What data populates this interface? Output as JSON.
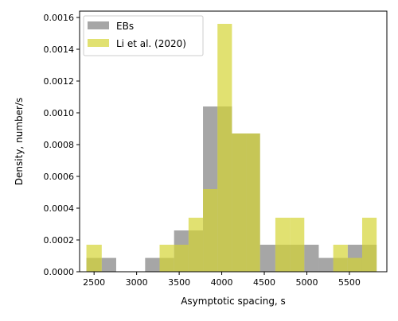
{
  "chart_data": {
    "type": "bar",
    "subtype": "overlapping-histogram",
    "title": "",
    "xlabel": "Asymptotic spacing, s",
    "ylabel": "Density, number/s",
    "xlim": [
      2330,
      5940
    ],
    "ylim": [
      0,
      0.00164
    ],
    "x_ticks": [
      2500,
      3000,
      3500,
      4000,
      4500,
      5000,
      5500
    ],
    "x_tick_labels": [
      "2500",
      "3000",
      "3500",
      "4000",
      "4500",
      "5000",
      "5500"
    ],
    "y_ticks": [
      0,
      0.0002,
      0.0004,
      0.0006,
      0.0008,
      0.001,
      0.0012,
      0.0014,
      0.0016
    ],
    "y_tick_labels": [
      "0.0000",
      "0.0002",
      "0.0004",
      "0.0006",
      "0.0008",
      "0.0010",
      "0.0012",
      "0.0014",
      "0.0016"
    ],
    "grid": false,
    "legend_position": "top-left",
    "overlap_color": "#a2a23c",
    "series": [
      {
        "name": "EBs",
        "color": "#808080",
        "bins": [
          {
            "x0": 2410,
            "x1": 2590,
            "value": 8.7e-05
          },
          {
            "x0": 2590,
            "x1": 2760,
            "value": 8.7e-05
          },
          {
            "x0": 3100,
            "x1": 3270,
            "value": 8.7e-05
          },
          {
            "x0": 3270,
            "x1": 3440,
            "value": 8.7e-05
          },
          {
            "x0": 3440,
            "x1": 3610,
            "value": 0.00026
          },
          {
            "x0": 3610,
            "x1": 3780,
            "value": 0.00026
          },
          {
            "x0": 3780,
            "x1": 3950,
            "value": 0.00104
          },
          {
            "x0": 3950,
            "x1": 4120,
            "value": 0.00104
          },
          {
            "x0": 4120,
            "x1": 4290,
            "value": 0.00087
          },
          {
            "x0": 4290,
            "x1": 4450,
            "value": 0.00087
          },
          {
            "x0": 4450,
            "x1": 4630,
            "value": 0.00017
          },
          {
            "x0": 4630,
            "x1": 4800,
            "value": 0.00017
          },
          {
            "x0": 4800,
            "x1": 4970,
            "value": 0.00017
          },
          {
            "x0": 4970,
            "x1": 5140,
            "value": 0.00017
          },
          {
            "x0": 5140,
            "x1": 5310,
            "value": 8.7e-05
          },
          {
            "x0": 5310,
            "x1": 5480,
            "value": 8.7e-05
          },
          {
            "x0": 5480,
            "x1": 5650,
            "value": 0.00017
          },
          {
            "x0": 5650,
            "x1": 5820,
            "value": 0.00017
          }
        ]
      },
      {
        "name": "Li et al. (2020)",
        "color": "#d4d434",
        "bins": [
          {
            "x0": 2410,
            "x1": 2590,
            "value": 0.00017
          },
          {
            "x0": 3270,
            "x1": 3440,
            "value": 0.00017
          },
          {
            "x0": 3440,
            "x1": 3610,
            "value": 0.00017
          },
          {
            "x0": 3610,
            "x1": 3780,
            "value": 0.00034
          },
          {
            "x0": 3780,
            "x1": 3950,
            "value": 0.00052
          },
          {
            "x0": 3950,
            "x1": 4120,
            "value": 0.00156
          },
          {
            "x0": 4120,
            "x1": 4290,
            "value": 0.00087
          },
          {
            "x0": 4290,
            "x1": 4450,
            "value": 0.00087
          },
          {
            "x0": 4630,
            "x1": 4800,
            "value": 0.00034
          },
          {
            "x0": 4800,
            "x1": 4970,
            "value": 0.00034
          },
          {
            "x0": 5310,
            "x1": 5480,
            "value": 0.00017
          },
          {
            "x0": 5480,
            "x1": 5650,
            "value": 8.7e-05
          },
          {
            "x0": 5650,
            "x1": 5820,
            "value": 0.00034
          }
        ]
      }
    ]
  }
}
